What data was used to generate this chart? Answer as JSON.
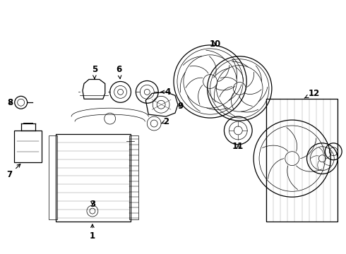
{
  "bg_color": "#ffffff",
  "line_color": "#000000",
  "figsize": [
    4.9,
    3.6
  ],
  "dpi": 100,
  "lw_main": 0.9,
  "lw_thin": 0.5,
  "label_fs": 8.5
}
